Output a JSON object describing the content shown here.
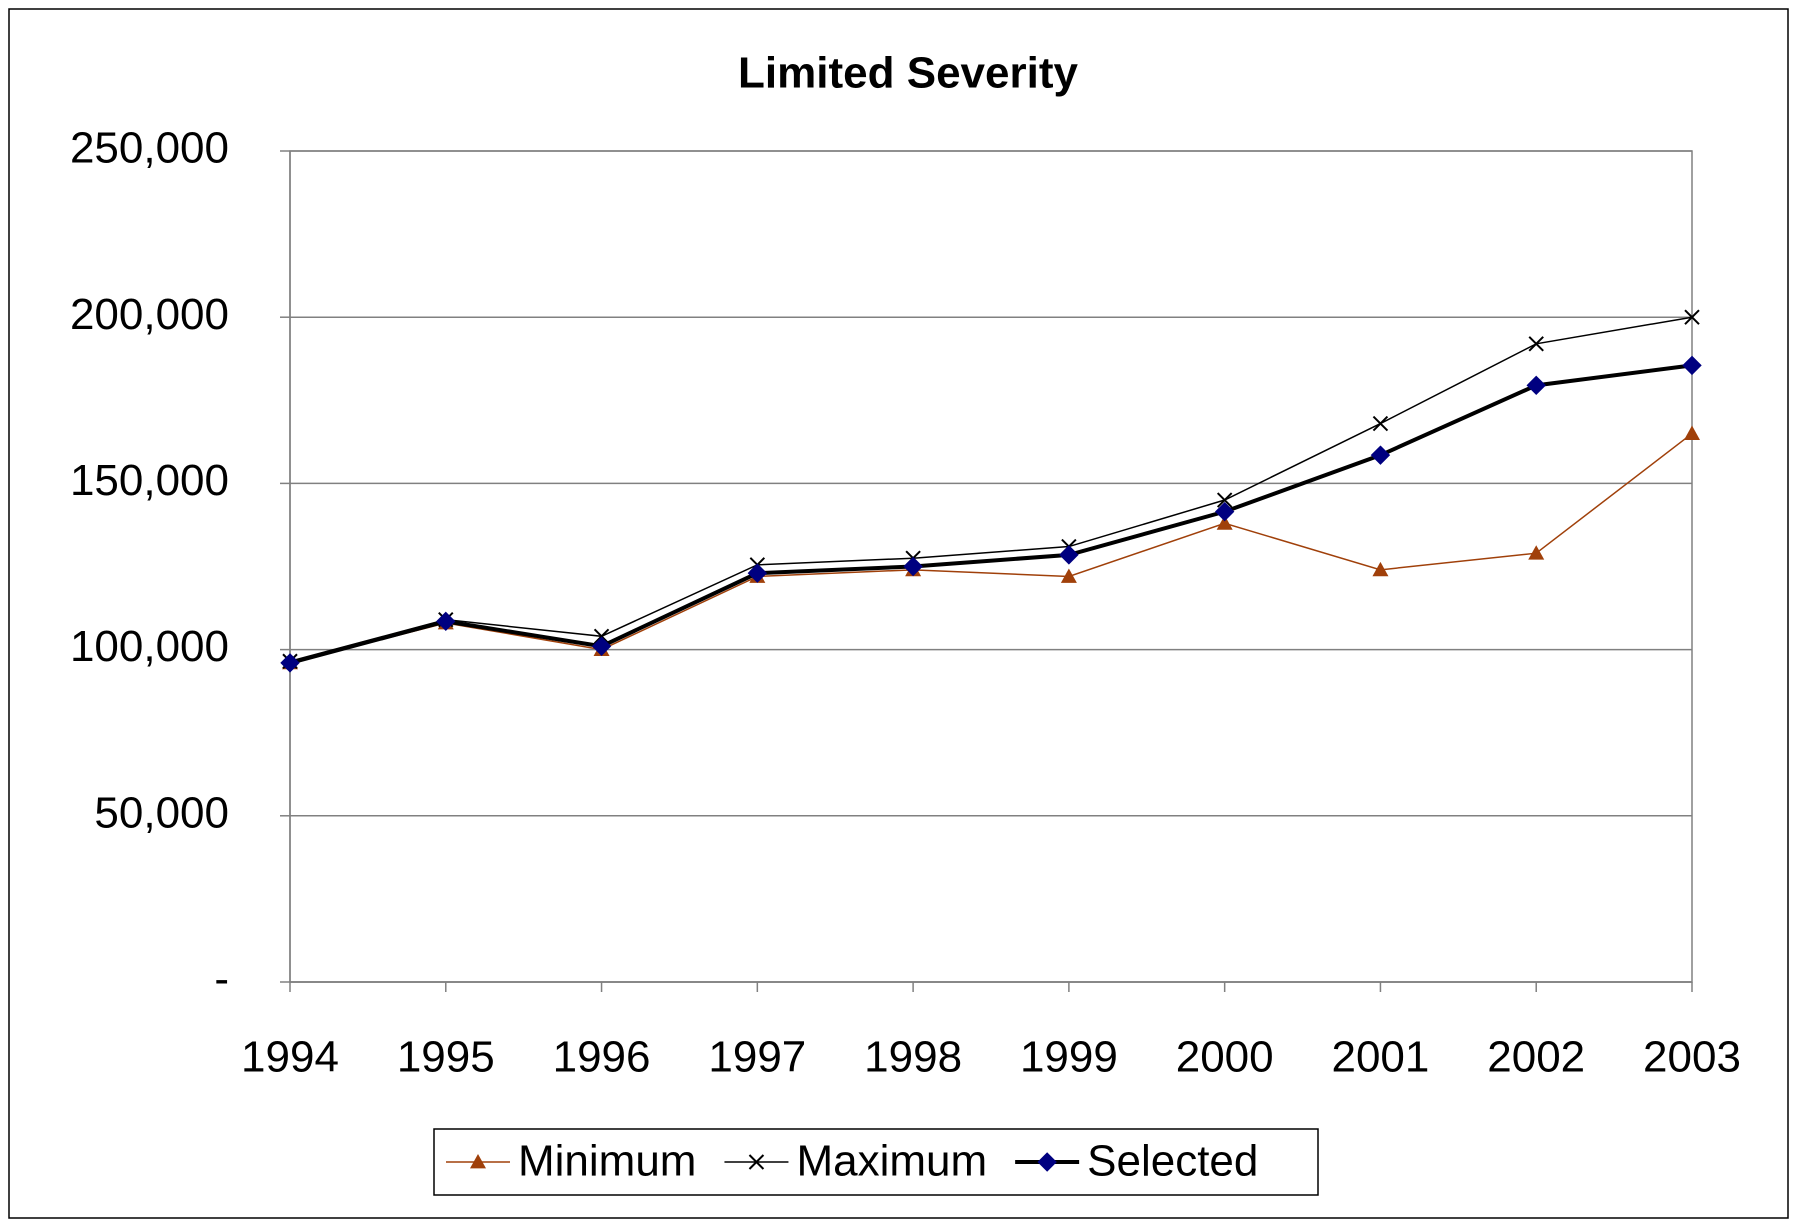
{
  "chart_data": {
    "type": "line",
    "title": "Limited Severity",
    "categories": [
      "1994",
      "1995",
      "1996",
      "1997",
      "1998",
      "1999",
      "2000",
      "2001",
      "2002",
      "2003"
    ],
    "series": [
      {
        "name": "Minimum",
        "color": "#a0400a",
        "marker": "triangle",
        "line_width": 1.5,
        "values": [
          96000,
          108000,
          100000,
          122000,
          124000,
          122000,
          138000,
          124000,
          129000,
          165000
        ]
      },
      {
        "name": "Maximum",
        "color": "#000000",
        "marker": "x",
        "line_width": 1.5,
        "values": [
          96500,
          109000,
          104000,
          125500,
          127500,
          131000,
          145000,
          168000,
          192000,
          200000
        ]
      },
      {
        "name": "Selected",
        "color": "#000080",
        "line_color": "#000000",
        "marker": "diamond",
        "line_width": 4,
        "values": [
          96000,
          108500,
          101000,
          123000,
          125000,
          128500,
          141500,
          158500,
          179500,
          185500
        ]
      }
    ],
    "ylim": [
      0,
      250000
    ],
    "yticks": [
      {
        "value": 0,
        "label": "-"
      },
      {
        "value": 50000,
        "label": "50,000"
      },
      {
        "value": 100000,
        "label": "100,000"
      },
      {
        "value": 150000,
        "label": "150,000"
      },
      {
        "value": 200000,
        "label": "200,000"
      },
      {
        "value": 250000,
        "label": "250,000"
      }
    ],
    "grid": true,
    "legend": "bottom"
  }
}
